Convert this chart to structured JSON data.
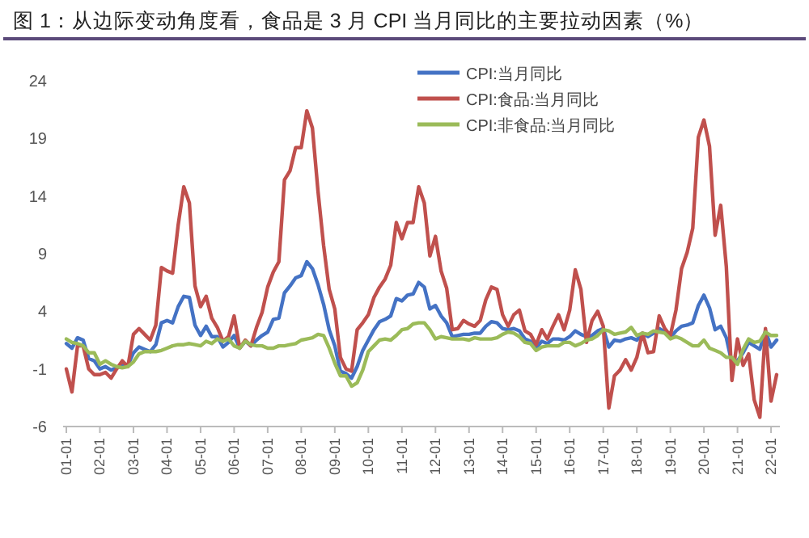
{
  "chart_data": {
    "type": "line",
    "title": "图 1：从边际变动角度看，食品是 3 月 CPI 当月同比的主要拉动因素（%）",
    "categories": [
      "01-01",
      null,
      null,
      null,
      null,
      null,
      "02-01",
      null,
      null,
      null,
      null,
      null,
      "03-01",
      null,
      null,
      null,
      null,
      null,
      "04-01",
      null,
      null,
      null,
      null,
      null,
      "05-01",
      null,
      null,
      null,
      null,
      null,
      "06-01",
      null,
      null,
      null,
      null,
      null,
      "07-01",
      null,
      null,
      null,
      null,
      null,
      "08-01",
      null,
      null,
      null,
      null,
      null,
      "09-01",
      null,
      null,
      null,
      null,
      null,
      "10-01",
      null,
      null,
      null,
      null,
      null,
      "11-01",
      null,
      null,
      null,
      null,
      null,
      "12-01",
      null,
      null,
      null,
      null,
      null,
      "13-01",
      null,
      null,
      null,
      null,
      null,
      "14-01",
      null,
      null,
      null,
      null,
      null,
      "15-01",
      null,
      null,
      null,
      null,
      null,
      "16-01",
      null,
      null,
      null,
      null,
      null,
      "17-01",
      null,
      null,
      null,
      null,
      null,
      "18-01",
      null,
      null,
      null,
      null,
      null,
      "19-01",
      null,
      null,
      null,
      null,
      null,
      "20-01",
      null,
      null,
      null,
      null,
      null,
      "21-01",
      null,
      null,
      null,
      null,
      null,
      "22-01",
      null
    ],
    "series": [
      {
        "name": "CPI:当月同比",
        "color": "#4472c4",
        "values": [
          1.2,
          0.8,
          1.7,
          1.5,
          -0.1,
          -0.3,
          -1.0,
          -0.8,
          -1.1,
          -0.9,
          -0.7,
          -0.7,
          0.4,
          0.9,
          0.7,
          0.5,
          1.1,
          3.0,
          3.2,
          3.0,
          4.4,
          5.3,
          5.2,
          2.8,
          1.9,
          2.7,
          1.8,
          1.8,
          0.9,
          1.3,
          1.9,
          0.8,
          1.4,
          1.0,
          1.5,
          1.9,
          2.2,
          3.3,
          3.4,
          5.6,
          6.2,
          6.9,
          7.1,
          8.3,
          7.7,
          6.3,
          4.6,
          2.4,
          1.0,
          -1.2,
          -1.4,
          -1.8,
          -0.8,
          0.6,
          1.5,
          2.4,
          3.1,
          3.3,
          3.6,
          5.1,
          4.9,
          5.4,
          5.5,
          6.5,
          6.1,
          4.2,
          4.5,
          3.6,
          3.0,
          1.8,
          1.9,
          2.0,
          2.0,
          2.1,
          2.1,
          2.7,
          3.1,
          3.0,
          2.5,
          2.4,
          2.5,
          2.3,
          1.6,
          1.4,
          0.8,
          1.4,
          1.2,
          1.6,
          1.6,
          1.5,
          1.8,
          2.3,
          2.0,
          1.8,
          1.9,
          2.3,
          2.5,
          0.9,
          1.5,
          1.4,
          1.6,
          1.7,
          1.5,
          2.1,
          1.8,
          2.1,
          2.5,
          2.2,
          1.7,
          2.3,
          2.7,
          2.8,
          3.0,
          4.5,
          5.4,
          4.3,
          2.4,
          2.7,
          1.7,
          -0.5,
          -0.3,
          0.4,
          1.3,
          1.0,
          0.7,
          2.3,
          0.9,
          1.5
        ]
      },
      {
        "name": "CPI:食品:当月同比",
        "color": "#c0504d",
        "values": [
          -1.0,
          -3.0,
          1.0,
          1.0,
          -1.0,
          -1.5,
          -1.5,
          -1.3,
          -1.8,
          -1.0,
          -0.3,
          -0.8,
          2.0,
          2.5,
          2.0,
          1.5,
          2.8,
          7.8,
          7.5,
          7.3,
          11.5,
          14.8,
          13.4,
          6.2,
          4.4,
          5.3,
          3.4,
          2.6,
          1.4,
          1.8,
          3.6,
          0.8,
          1.5,
          1.0,
          2.6,
          3.9,
          6.1,
          7.4,
          8.3,
          15.4,
          16.2,
          18.2,
          18.2,
          21.4,
          19.9,
          14.4,
          9.7,
          5.9,
          4.2,
          0.0,
          -1.0,
          -1.2,
          2.4,
          3.0,
          3.7,
          5.2,
          6.1,
          6.8,
          8.0,
          11.7,
          10.3,
          11.7,
          11.7,
          14.8,
          13.4,
          8.8,
          10.5,
          7.5,
          6.0,
          2.4,
          2.5,
          3.2,
          2.9,
          2.7,
          3.2,
          5.0,
          6.1,
          5.9,
          3.7,
          2.7,
          3.7,
          4.1,
          2.3,
          2.0,
          1.1,
          2.4,
          1.6,
          2.7,
          3.7,
          2.4,
          4.1,
          7.6,
          5.9,
          1.3,
          3.2,
          4.0,
          2.7,
          -4.4,
          -1.6,
          -1.1,
          -0.2,
          -1.1,
          0.0,
          2.1,
          0.4,
          0.5,
          3.6,
          2.5,
          1.9,
          4.1,
          7.7,
          9.1,
          11.2,
          19.1,
          20.6,
          18.3,
          10.6,
          13.2,
          7.9,
          -2.0,
          1.6,
          -0.7,
          0.3,
          -3.7,
          -5.2,
          2.5,
          -3.8,
          -1.5
        ]
      },
      {
        "name": "CPI:非食品:当月同比",
        "color": "#9bbb59",
        "values": [
          1.6,
          1.3,
          1.2,
          1.0,
          0.4,
          0.4,
          -0.6,
          -0.3,
          -0.6,
          -0.8,
          -0.9,
          -0.8,
          -0.4,
          0.3,
          0.5,
          0.5,
          0.5,
          0.6,
          0.8,
          1.0,
          1.1,
          1.1,
          1.2,
          1.1,
          1.0,
          1.4,
          1.2,
          1.6,
          1.4,
          1.6,
          1.0,
          0.8,
          1.4,
          1.1,
          1.0,
          1.0,
          0.8,
          0.8,
          1.0,
          1.0,
          1.1,
          1.2,
          1.5,
          1.6,
          1.7,
          2.0,
          1.9,
          0.8,
          -0.5,
          -1.6,
          -1.6,
          -2.5,
          -2.2,
          -1.1,
          0.5,
          1.0,
          1.5,
          1.6,
          1.5,
          1.9,
          2.4,
          2.5,
          2.9,
          3.0,
          3.0,
          2.4,
          1.6,
          1.8,
          1.7,
          1.6,
          1.6,
          1.6,
          1.5,
          1.7,
          1.6,
          1.6,
          1.6,
          1.7,
          2.0,
          2.2,
          2.1,
          1.8,
          1.3,
          1.2,
          0.6,
          0.9,
          1.0,
          1.0,
          1.0,
          1.3,
          1.3,
          1.0,
          1.2,
          1.5,
          1.6,
          1.9,
          2.4,
          2.3,
          2.0,
          2.1,
          2.2,
          2.6,
          1.9,
          2.1,
          2.0,
          2.3,
          2.2,
          2.1,
          1.6,
          1.8,
          1.6,
          1.3,
          1.0,
          1.0,
          1.5,
          0.8,
          0.6,
          0.4,
          0.0,
          0.0,
          -0.6,
          0.7,
          1.6,
          1.3,
          1.4,
          2.2,
          1.9,
          1.9
        ]
      }
    ],
    "ylim": [
      -6,
      24
    ],
    "yticks": [
      -6,
      -1,
      4,
      9,
      14,
      19,
      24
    ],
    "legend": "top right"
  }
}
